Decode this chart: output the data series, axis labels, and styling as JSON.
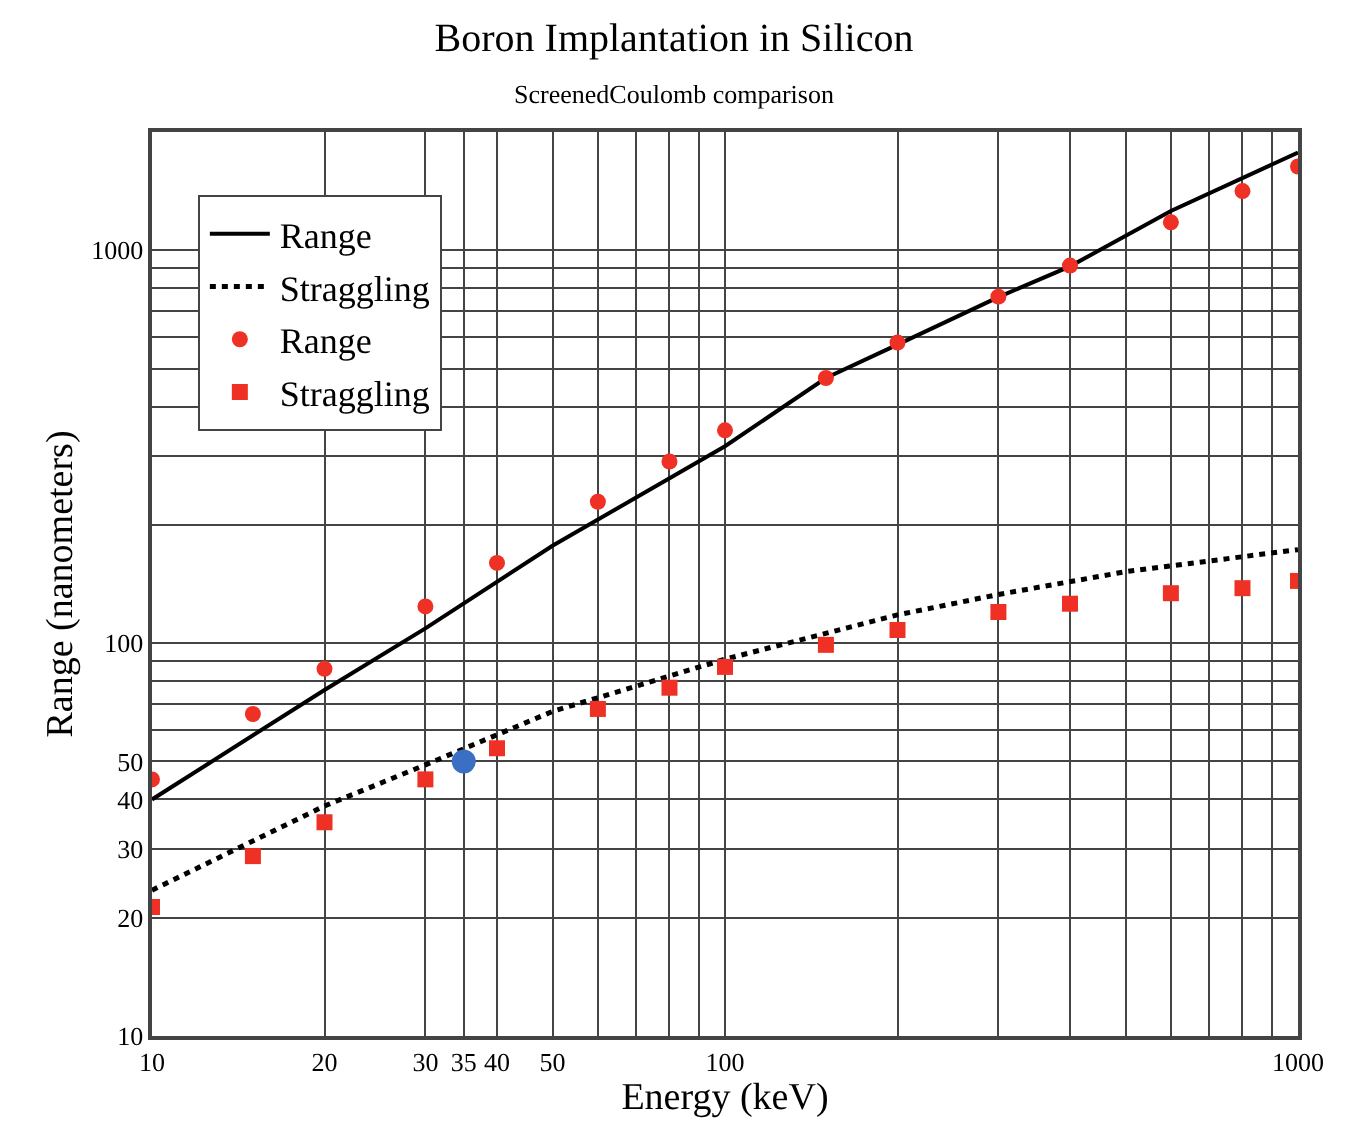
{
  "chart_data": {
    "type": "scatter",
    "title": "Boron Implantation in Silicon",
    "subtitle": "ScreenedCoulomb comparison",
    "xlabel": "Energy (keV)",
    "ylabel": "Range (nanometers)",
    "log": "xy",
    "grid": true,
    "legend": "top left",
    "xlim": [
      10,
      1000
    ],
    "ylim": [
      10,
      2000
    ],
    "xticks": [
      10,
      20,
      30,
      35,
      40,
      50,
      {
        "value": 60,
        "label": null
      },
      {
        "value": 70,
        "label": null
      },
      {
        "value": 80,
        "label": null
      },
      {
        "value": 90,
        "label": null
      },
      100,
      {
        "value": 200,
        "label": null
      },
      {
        "value": 300,
        "label": null
      },
      {
        "value": 400,
        "label": null
      },
      {
        "value": 500,
        "label": null
      },
      {
        "value": 600,
        "label": null
      },
      {
        "value": 700,
        "label": null
      },
      {
        "value": 800,
        "label": null
      },
      {
        "value": 900,
        "label": null
      },
      1000
    ],
    "yticks": [
      10,
      20,
      30,
      40,
      50,
      {
        "value": 60,
        "label": null
      },
      {
        "value": 70,
        "label": null
      },
      {
        "value": 80,
        "label": null
      },
      {
        "value": 90,
        "label": null
      },
      100,
      {
        "value": 200,
        "label": null
      },
      {
        "value": 300,
        "label": null
      },
      {
        "value": 400,
        "label": null
      },
      {
        "value": 500,
        "label": null
      },
      {
        "value": 600,
        "label": null
      },
      {
        "value": 700,
        "label": null
      },
      {
        "value": 800,
        "label": null
      },
      {
        "value": 900,
        "label": null
      },
      1000
    ],
    "series": [
      {
        "name": "Range",
        "type": "line",
        "line_style": "solid",
        "marker": "none",
        "color": "#000000",
        "x": [
          10,
          20,
          30,
          50,
          100,
          150,
          200,
          300,
          400,
          600,
          1000
        ],
        "values": [
          40,
          76,
          109,
          177,
          317,
          473,
          575,
          760,
          910,
          1259,
          1774
        ]
      },
      {
        "name": "Straggling",
        "type": "line",
        "line_style": "dotted",
        "marker": "none",
        "color": "#000000",
        "x": [
          10,
          20,
          30,
          50,
          100,
          200,
          300,
          500,
          1000
        ],
        "values": [
          23.5,
          38.5,
          49,
          67,
          91,
          118,
          133,
          152,
          173
        ]
      },
      {
        "name": "Range",
        "type": "scatter",
        "marker": "circle",
        "color": "#ee3124",
        "x": [
          10,
          15,
          20,
          30,
          40,
          60,
          80,
          100,
          150,
          200,
          300,
          400,
          600,
          800,
          1000
        ],
        "values": [
          45,
          66,
          86,
          124,
          160,
          229,
          290,
          348,
          473,
          582,
          762,
          914,
          1178,
          1415,
          1634
        ]
      },
      {
        "name": "Straggling",
        "type": "scatter",
        "marker": "square",
        "color": "#ee3124",
        "x": [
          10,
          15,
          20,
          30,
          40,
          60,
          80,
          100,
          150,
          200,
          300,
          400,
          600,
          800,
          1000
        ],
        "values": [
          21.3,
          28.7,
          35,
          45,
          54,
          68,
          77,
          87,
          99,
          108,
          120,
          126,
          134,
          138,
          144
        ]
      },
      {
        "type": "scatter",
        "marker": "circle",
        "color": "#3a6fc4",
        "x": [
          35
        ],
        "values": [
          50
        ]
      }
    ]
  }
}
